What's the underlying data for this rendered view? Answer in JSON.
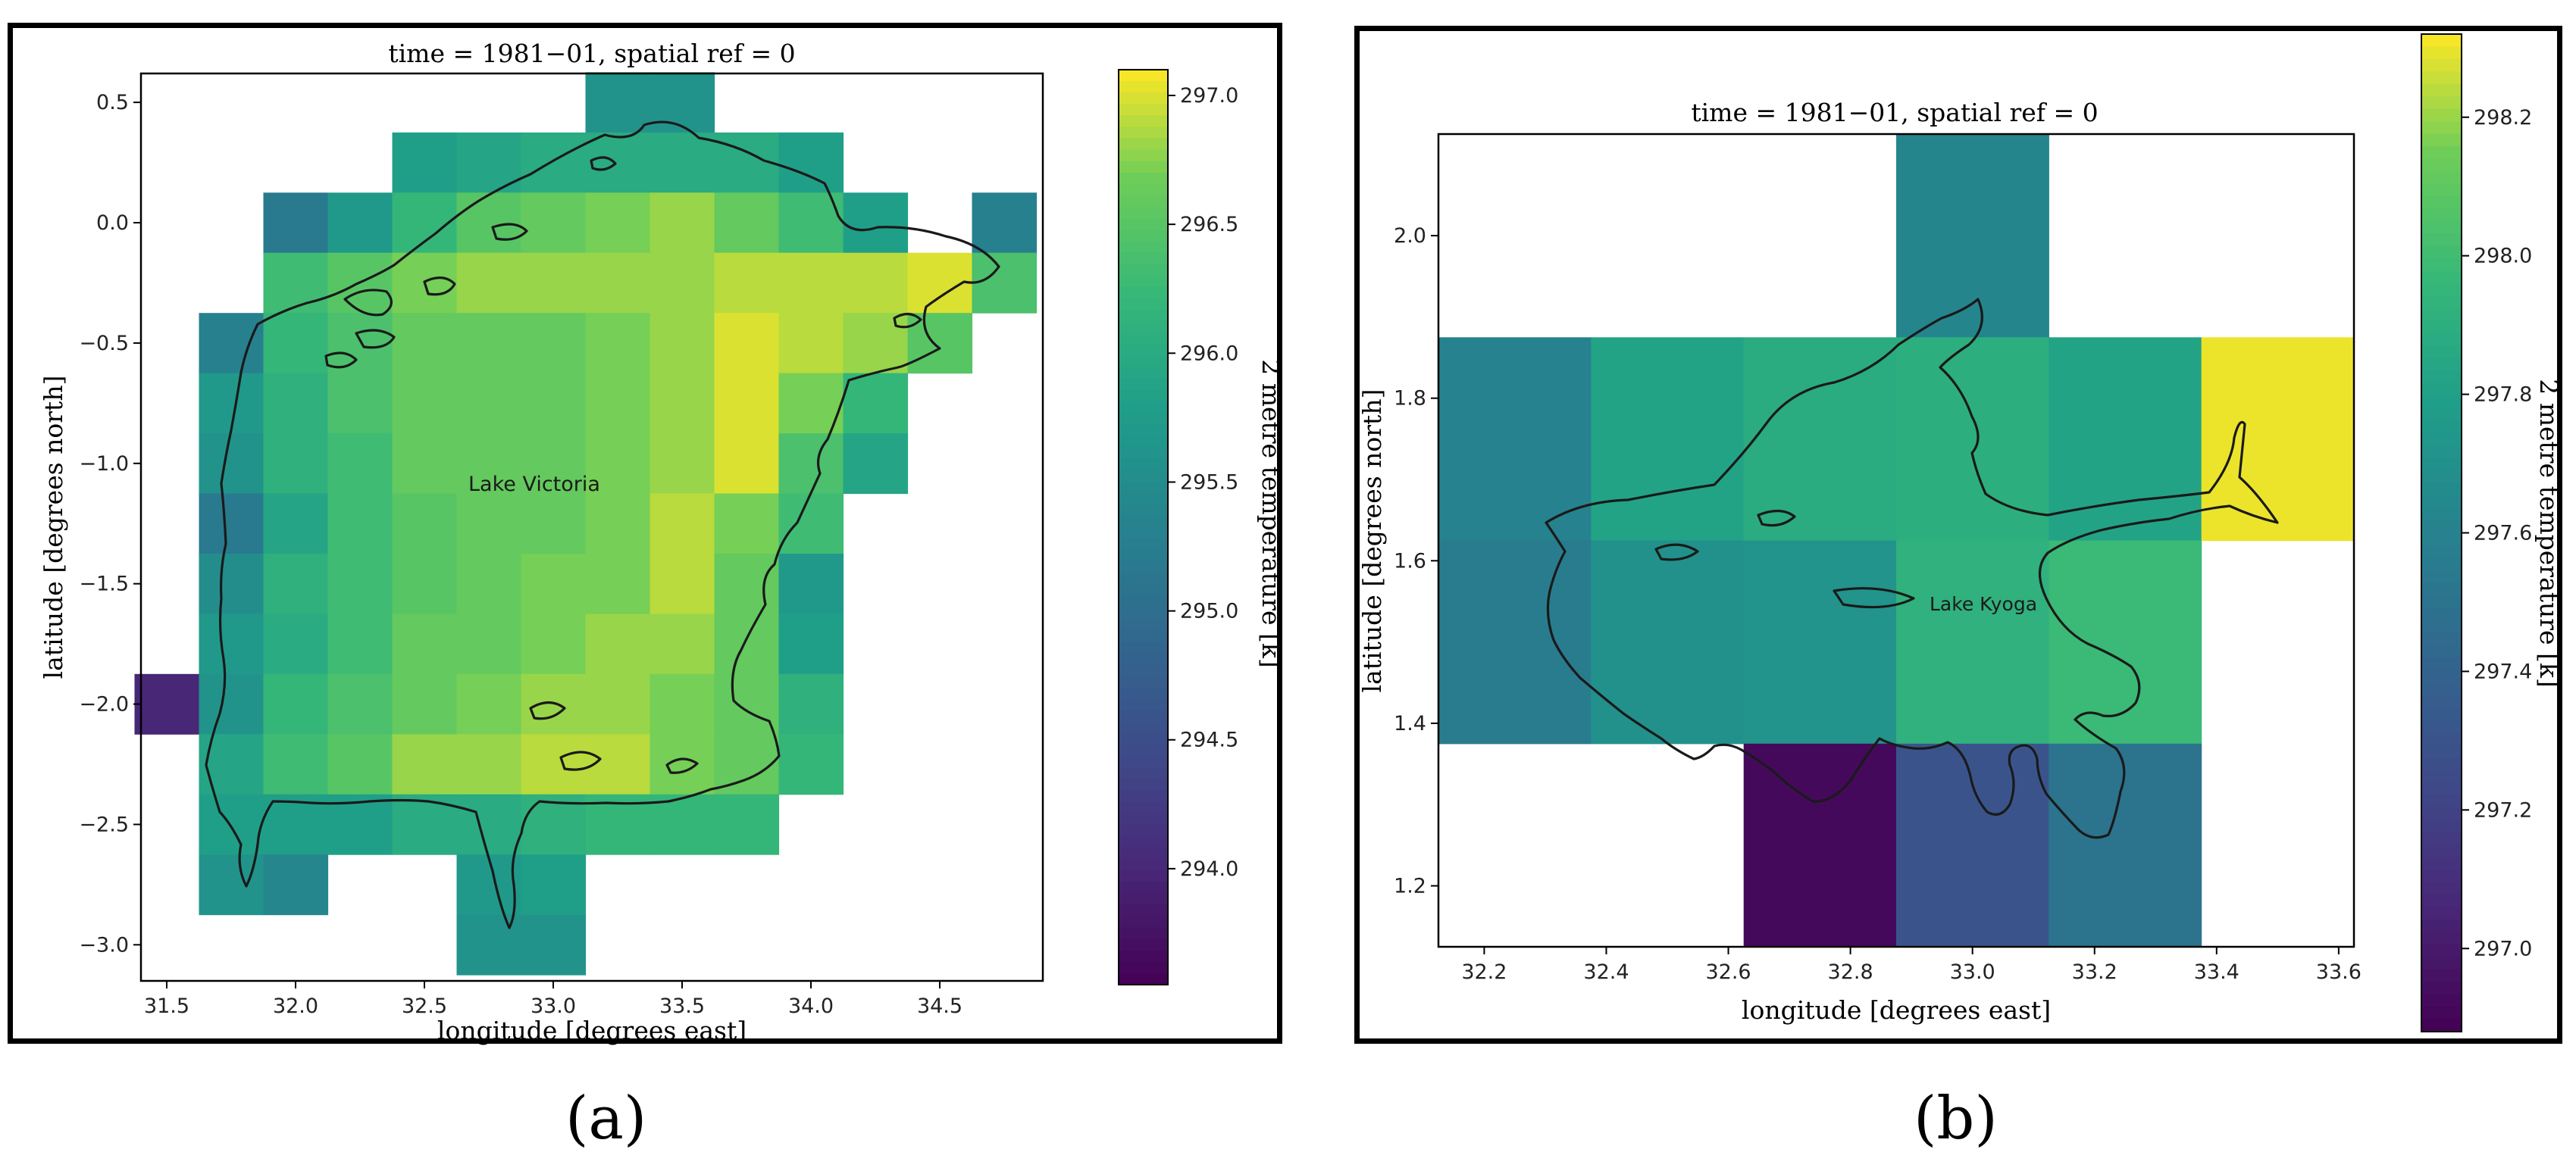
{
  "figure": {
    "label_a": "(a)",
    "label_b": "(b)"
  },
  "chart_data": [
    {
      "type": "heatmap",
      "title": "time = 1981−01, spatial ref = 0",
      "xlabel": "longitude [degrees east]",
      "ylabel": "latitude [degrees north]",
      "colorbar_label": "2 metre temperature [k]",
      "annotation": "Lake Victoria",
      "xlim": [
        31.4,
        34.9
      ],
      "ylim": [
        -3.15,
        0.62
      ],
      "x_ticks": [
        31.5,
        32.0,
        32.5,
        33.0,
        33.5,
        34.0,
        34.5
      ],
      "x_tick_labels": [
        "31.5",
        "32.0",
        "32.5",
        "33.0",
        "33.5",
        "34.0",
        "34.5"
      ],
      "y_ticks": [
        0.5,
        0.0,
        -0.5,
        -1.0,
        -1.5,
        -2.0,
        -2.5,
        -3.0
      ],
      "y_tick_labels": [
        "0.5",
        "0.0",
        "−0.5",
        "−1.0",
        "−1.5",
        "−2.0",
        "−2.5",
        "−3.0"
      ],
      "colorbar_ticks": [
        297.0,
        296.5,
        296.0,
        295.5,
        295.0,
        294.5,
        294.0
      ],
      "colorbar_tick_labels": [
        "297.0",
        "296.5",
        "296.0",
        "295.5",
        "295.0",
        "294.5",
        "294.0"
      ],
      "colorbar_range": [
        293.55,
        297.1
      ],
      "colormap": "viridis",
      "cell_size_deg": 0.25,
      "col_centers_lon": [
        31.5,
        31.75,
        32.0,
        32.25,
        32.5,
        32.75,
        33.0,
        33.25,
        33.5,
        33.75,
        34.0,
        34.25,
        34.5,
        34.75
      ],
      "row_centers_lat": [
        0.5,
        0.25,
        0.0,
        -0.25,
        -0.5,
        -0.75,
        -1.0,
        -1.25,
        -1.5,
        -1.75,
        -2.0,
        -2.25,
        -2.5,
        -2.75,
        -3.0
      ],
      "values": [
        [
          null,
          null,
          null,
          null,
          null,
          null,
          null,
          295.6,
          295.6,
          null,
          null,
          null,
          null,
          null
        ],
        [
          null,
          null,
          null,
          null,
          295.8,
          295.9,
          296.0,
          296.0,
          296.0,
          296.0,
          295.8,
          null,
          null,
          null
        ],
        [
          null,
          null,
          295.2,
          295.7,
          296.2,
          296.5,
          296.6,
          296.7,
          296.8,
          296.6,
          296.3,
          295.8,
          null,
          295.3
        ],
        [
          null,
          null,
          296.3,
          296.5,
          296.7,
          296.8,
          296.8,
          296.8,
          296.8,
          296.9,
          296.9,
          296.9,
          297.0,
          296.4
        ],
        [
          null,
          295.3,
          296.2,
          296.4,
          296.6,
          296.6,
          296.6,
          296.7,
          296.8,
          297.0,
          296.9,
          296.8,
          296.5,
          null
        ],
        [
          null,
          295.7,
          296.1,
          296.4,
          296.6,
          296.6,
          296.6,
          296.7,
          296.8,
          297.0,
          296.7,
          296.2,
          null,
          null
        ],
        [
          null,
          295.6,
          296.1,
          296.3,
          296.6,
          296.6,
          296.6,
          296.7,
          296.8,
          297.0,
          296.4,
          295.9,
          null,
          null
        ],
        [
          null,
          295.2,
          295.9,
          296.3,
          296.5,
          296.6,
          296.6,
          296.7,
          296.9,
          296.7,
          296.3,
          null,
          null,
          null
        ],
        [
          null,
          295.5,
          296.1,
          296.3,
          296.5,
          296.6,
          296.7,
          296.7,
          296.9,
          296.6,
          295.7,
          null,
          null,
          null
        ],
        [
          null,
          295.7,
          296.0,
          296.3,
          296.6,
          296.6,
          296.7,
          296.8,
          296.8,
          296.6,
          295.8,
          null,
          null,
          null
        ],
        [
          294.0,
          295.6,
          296.2,
          296.4,
          296.6,
          296.7,
          296.8,
          296.8,
          296.7,
          296.6,
          296.1,
          null,
          null,
          null
        ],
        [
          null,
          295.9,
          296.3,
          296.5,
          296.8,
          296.8,
          296.9,
          296.9,
          296.7,
          296.6,
          296.2,
          null,
          null,
          null
        ],
        [
          null,
          295.8,
          295.8,
          295.8,
          296.0,
          296.0,
          296.1,
          296.2,
          296.2,
          296.2,
          null,
          null,
          null,
          null
        ],
        [
          null,
          295.6,
          295.4,
          null,
          null,
          295.7,
          295.8,
          null,
          null,
          null,
          null,
          null,
          null,
          null
        ],
        [
          null,
          null,
          null,
          null,
          null,
          295.6,
          295.6,
          null,
          null,
          null,
          null,
          null,
          null,
          null
        ]
      ]
    },
    {
      "type": "heatmap",
      "title": "time = 1981−01, spatial ref = 0",
      "xlabel": "longitude [degrees east]",
      "ylabel": "latitude [degrees north]",
      "colorbar_label": "2 metre temperature [k]",
      "annotation": "Lake Kyoga",
      "xlim": [
        32.125,
        33.625
      ],
      "ylim": [
        1.125,
        2.125
      ],
      "x_ticks": [
        32.2,
        32.4,
        32.6,
        32.8,
        33.0,
        33.2,
        33.4,
        33.6
      ],
      "x_tick_labels": [
        "32.2",
        "32.4",
        "32.6",
        "32.8",
        "33.0",
        "33.2",
        "33.4",
        "33.6"
      ],
      "y_ticks": [
        2.0,
        1.8,
        1.6,
        1.4,
        1.2
      ],
      "y_tick_labels": [
        "2.0",
        "1.8",
        "1.6",
        "1.4",
        "1.2"
      ],
      "colorbar_ticks": [
        298.2,
        298.0,
        297.8,
        297.6,
        297.4,
        297.2,
        297.0
      ],
      "colorbar_tick_labels": [
        "298.2",
        "298.0",
        "297.8",
        "297.6",
        "297.4",
        "297.2",
        "297.0"
      ],
      "colorbar_range": [
        296.88,
        298.32
      ],
      "colormap": "viridis",
      "cell_size_deg": 0.25,
      "col_centers_lon": [
        32.25,
        32.5,
        32.75,
        33.0,
        33.25,
        33.5
      ],
      "row_centers_lat": [
        2.0,
        1.75,
        1.5,
        1.25
      ],
      "values": [
        [
          null,
          null,
          null,
          297.62,
          null,
          null
        ],
        [
          297.6,
          297.82,
          297.88,
          297.9,
          297.82,
          298.3
        ],
        [
          297.56,
          297.7,
          297.72,
          297.92,
          297.98,
          null
        ],
        [
          null,
          null,
          296.92,
          297.3,
          297.5,
          null
        ]
      ]
    }
  ]
}
